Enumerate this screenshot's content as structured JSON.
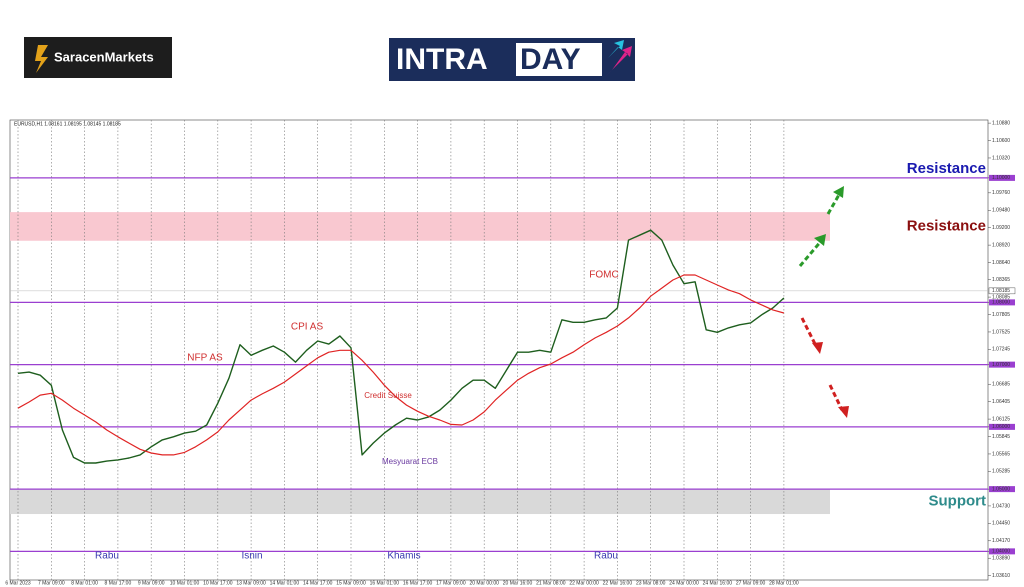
{
  "header": {
    "brand": "SaracenMarkets",
    "banner_left": "INTRA",
    "banner_right": "DAY"
  },
  "chart_data": {
    "type": "line",
    "symbol_info": "EURUSD,H1 1.08161 1.08195 1.08145 1.08185",
    "categories": [
      "6 Mar 2023",
      null,
      null,
      "7 Mar 09:00",
      null,
      null,
      "8 Mar 01:00",
      null,
      null,
      "8 Mar 17:00",
      null,
      null,
      "9 Mar 09:00",
      null,
      null,
      "10 Mar 01:00",
      null,
      null,
      "10 Mar 17:00",
      null,
      null,
      "13 Mar 09:00",
      null,
      null,
      "14 Mar 01:00",
      null,
      null,
      "14 Mar 17:00",
      null,
      null,
      "15 Mar 09:00",
      null,
      null,
      "16 Mar 01:00",
      null,
      null,
      "16 Mar 17:00",
      null,
      null,
      "17 Mar 09:00",
      null,
      null,
      "20 Mar 00:00",
      null,
      null,
      "20 Mar 16:00",
      null,
      null,
      "21 Mar 08:00",
      null,
      null,
      "22 Mar 00:00",
      null,
      null,
      "22 Mar 16:00",
      null,
      null,
      "23 Mar 08:00",
      null,
      null,
      "24 Mar 00:00",
      null,
      null,
      "24 Mar 16:00",
      null,
      null,
      "27 Mar 09:00",
      null,
      null,
      "28 Mar 01:00",
      null,
      null
    ],
    "series": [
      {
        "color": "#1e5e1e",
        "values": [
          1.0686,
          1.0688,
          1.0683,
          1.0667,
          1.0595,
          1.0551,
          1.0542,
          1.0542,
          1.0545,
          1.0547,
          1.055,
          1.0555,
          1.0568,
          1.0579,
          1.0584,
          1.059,
          1.0593,
          1.0603,
          1.0638,
          1.0678,
          1.0732,
          1.0715,
          1.0723,
          1.073,
          1.072,
          1.0704,
          1.0723,
          1.0738,
          1.0733,
          1.0746,
          1.0727,
          1.0555,
          1.0574,
          1.059,
          1.0603,
          1.0614,
          1.0611,
          1.0616,
          1.0627,
          1.0643,
          1.0662,
          1.0675,
          1.0675,
          1.0662,
          1.0691,
          1.072,
          1.072,
          1.0723,
          1.072,
          1.0772,
          1.0768,
          1.0768,
          1.0772,
          1.0775,
          1.0791,
          1.09,
          1.0908,
          1.0916,
          1.09,
          1.086,
          1.083,
          1.0833,
          1.0756,
          1.0752,
          1.0759,
          1.0764,
          1.0767,
          1.078,
          1.0791,
          1.0807,
          null,
          null
        ]
      },
      {
        "color": "#e02424",
        "values": [
          1.063,
          1.064,
          1.0651,
          1.0654,
          1.0643,
          1.063,
          1.0619,
          1.0608,
          1.0595,
          1.0584,
          1.0574,
          1.0564,
          1.0558,
          1.0555,
          1.0555,
          1.0559,
          1.0568,
          1.0579,
          1.0592,
          1.0611,
          1.0627,
          1.0643,
          1.0653,
          1.0662,
          1.0672,
          1.0685,
          1.0698,
          1.0711,
          1.072,
          1.0723,
          1.0723,
          1.0707,
          1.0688,
          1.0667,
          1.0649,
          1.0635,
          1.0625,
          1.0617,
          1.0611,
          1.0604,
          1.0603,
          1.0611,
          1.0624,
          1.0643,
          1.0659,
          1.0675,
          1.0686,
          1.0695,
          1.0701,
          1.0711,
          1.072,
          1.0732,
          1.0743,
          1.0752,
          1.0762,
          1.0775,
          1.0791,
          1.081,
          1.0823,
          1.0836,
          1.0844,
          1.0844,
          1.0836,
          1.0828,
          1.082,
          1.0814,
          1.0804,
          1.0796,
          1.0788,
          1.0783,
          null,
          null
        ]
      }
    ],
    "ylim": [
      1.0354,
      1.1093
    ],
    "yticks": [
      {
        "value": 1.1088,
        "label": "1.10880"
      },
      {
        "value": 1.106,
        "label": "1.10600"
      },
      {
        "value": 1.1032,
        "label": "1.10320"
      },
      {
        "value": 1.1,
        "label": "1.10000"
      },
      {
        "value": 1.0976,
        "label": "1.09760"
      },
      {
        "value": 1.0948,
        "label": "1.09480"
      },
      {
        "value": 1.092,
        "label": "1.09200"
      },
      {
        "value": 1.0892,
        "label": "1.08920"
      },
      {
        "value": 1.0864,
        "label": "1.08640"
      },
      {
        "value": 1.08365,
        "label": "1.08365"
      },
      {
        "value": 1.08085,
        "label": "1.08085"
      },
      {
        "value": 1.08,
        "label": "1.08000"
      },
      {
        "value": 1.07805,
        "label": "1.07805"
      },
      {
        "value": 1.07525,
        "label": "1.07525"
      },
      {
        "value": 1.07245,
        "label": "1.07245"
      },
      {
        "value": 1.07,
        "label": "1.07000"
      },
      {
        "value": 1.06685,
        "label": "1.06685"
      },
      {
        "value": 1.06405,
        "label": "1.06405"
      },
      {
        "value": 1.06125,
        "label": "1.06125"
      },
      {
        "value": 1.06,
        "label": "1.06000"
      },
      {
        "value": 1.05845,
        "label": "1.05845"
      },
      {
        "value": 1.05565,
        "label": "1.05565"
      },
      {
        "value": 1.05285,
        "label": "1.05285"
      },
      {
        "value": 1.05,
        "label": "1.05000"
      },
      {
        "value": 1.0473,
        "label": "1.04730"
      },
      {
        "value": 1.0445,
        "label": "1.04450"
      },
      {
        "value": 1.0417,
        "label": "1.04170"
      },
      {
        "value": 1.04,
        "label": "1.04000"
      },
      {
        "value": 1.0389,
        "label": "1.03890"
      },
      {
        "value": 1.0361,
        "label": "1.03610"
      }
    ],
    "current_price": {
      "value": 1.08185,
      "label": "1.08185"
    },
    "levels": [
      {
        "value": 1.1,
        "label": "Resistance",
        "color": "#1a1ab0"
      },
      {
        "value": 1.08
      },
      {
        "value": 1.07
      },
      {
        "value": 1.06
      },
      {
        "value": 1.05
      },
      {
        "value": 1.04
      }
    ],
    "level_color": "#9a3fd0",
    "zones": [
      {
        "range": [
          1.0899,
          1.0945
        ],
        "label": "Resistance",
        "color": "#f9c8d0",
        "label_color": "#8b1010"
      },
      {
        "range": [
          1.046,
          1.05
        ],
        "label": "Support",
        "color": "#d9d9d9",
        "label_color": "#2e8b8b"
      }
    ],
    "annotations": [
      "NFP AS",
      "CPI AS",
      "Credit Suisse",
      "Mesyuarat ECB",
      "FOMC"
    ],
    "sessions": [
      "Rabu",
      "Isnin",
      "Khamis",
      "Rabu"
    ],
    "grid": true
  }
}
